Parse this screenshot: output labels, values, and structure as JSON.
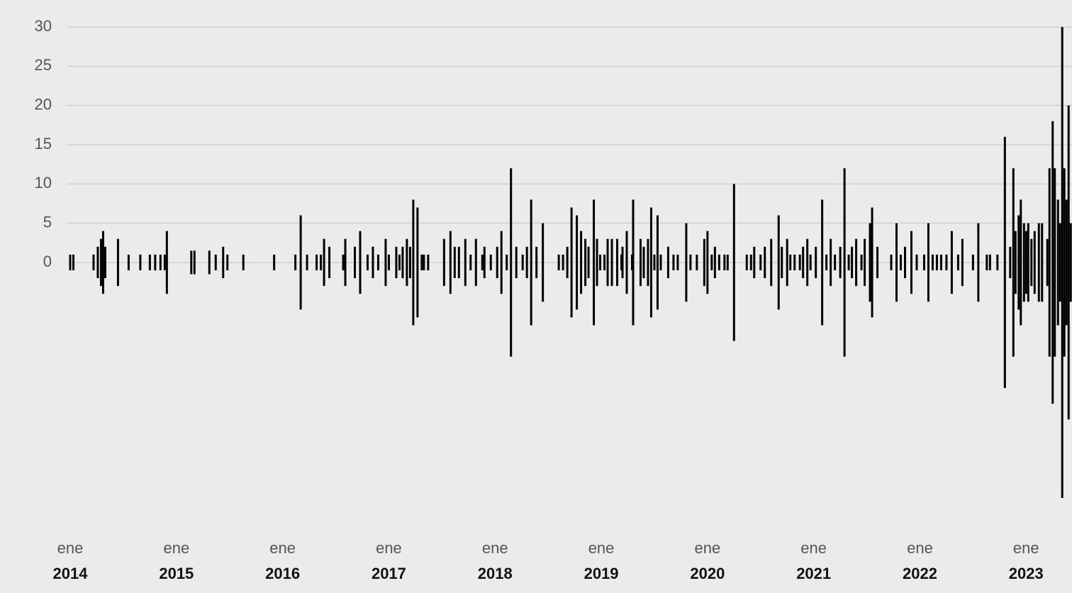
{
  "chart_data": {
    "type": "mirror-bar",
    "color": "#000000",
    "grid": true,
    "xlim": [
      2013.606,
      2023.432
    ],
    "ylim": [
      -30,
      30
    ],
    "yticks": [
      0,
      5,
      10,
      15,
      20,
      25,
      30
    ],
    "xticks": [
      {
        "value": 2014,
        "label": "ene",
        "sublabel": "2014"
      },
      {
        "value": 2015,
        "label": "ene",
        "sublabel": "2015"
      },
      {
        "value": 2016,
        "label": "ene",
        "sublabel": "2016"
      },
      {
        "value": 2017,
        "label": "ene",
        "sublabel": "2017"
      },
      {
        "value": 2018,
        "label": "ene",
        "sublabel": "2018"
      },
      {
        "value": 2019,
        "label": "ene",
        "sublabel": "2019"
      },
      {
        "value": 2020,
        "label": "ene",
        "sublabel": "2020"
      },
      {
        "value": 2021,
        "label": "ene",
        "sublabel": "2021"
      },
      {
        "value": 2022,
        "label": "ene",
        "sublabel": "2022"
      },
      {
        "value": 2023,
        "label": "ene",
        "sublabel": "2023"
      }
    ],
    "x": [
      2014.0,
      2014.03,
      2014.22,
      2014.26,
      2014.29,
      2014.31,
      2014.33,
      2014.45,
      2014.55,
      2014.66,
      2014.75,
      2014.8,
      2014.85,
      2014.89,
      2014.91,
      2015.14,
      2015.17,
      2015.31,
      2015.37,
      2015.44,
      2015.48,
      2015.63,
      2015.92,
      2016.12,
      2016.17,
      2016.23,
      2016.32,
      2016.36,
      2016.39,
      2016.44,
      2016.57,
      2016.59,
      2016.68,
      2016.73,
      2016.8,
      2016.85,
      2016.9,
      2016.97,
      2017.0,
      2017.07,
      2017.1,
      2017.13,
      2017.17,
      2017.2,
      2017.23,
      2017.27,
      2017.31,
      2017.33,
      2017.37,
      2017.52,
      2017.58,
      2017.62,
      2017.66,
      2017.72,
      2017.77,
      2017.82,
      2017.88,
      2017.9,
      2017.96,
      2018.02,
      2018.06,
      2018.11,
      2018.15,
      2018.2,
      2018.26,
      2018.3,
      2018.34,
      2018.39,
      2018.45,
      2018.6,
      2018.64,
      2018.68,
      2018.72,
      2018.77,
      2018.81,
      2018.85,
      2018.88,
      2018.93,
      2018.96,
      2018.99,
      2019.03,
      2019.06,
      2019.1,
      2019.15,
      2019.19,
      2019.2,
      2019.24,
      2019.29,
      2019.3,
      2019.37,
      2019.4,
      2019.44,
      2019.47,
      2019.5,
      2019.53,
      2019.56,
      2019.63,
      2019.68,
      2019.72,
      2019.8,
      2019.84,
      2019.9,
      2019.97,
      2020.0,
      2020.04,
      2020.07,
      2020.11,
      2020.16,
      2020.19,
      2020.25,
      2020.37,
      2020.41,
      2020.44,
      2020.5,
      2020.54,
      2020.6,
      2020.67,
      2020.7,
      2020.75,
      2020.78,
      2020.82,
      2020.87,
      2020.9,
      2020.94,
      2020.97,
      2021.02,
      2021.08,
      2021.12,
      2021.16,
      2021.2,
      2021.25,
      2021.29,
      2021.33,
      2021.36,
      2021.4,
      2021.45,
      2021.48,
      2021.53,
      2021.55,
      2021.6,
      2021.73,
      2021.78,
      2021.82,
      2021.86,
      2021.92,
      2021.97,
      2022.04,
      2022.08,
      2022.12,
      2022.16,
      2022.2,
      2022.25,
      2022.3,
      2022.36,
      2022.4,
      2022.5,
      2022.55,
      2022.63,
      2022.66,
      2022.73,
      2022.8,
      2022.85,
      2022.88,
      2022.9,
      2022.93,
      2022.95,
      2022.98,
      2023.0,
      2023.02,
      2023.05,
      2023.08,
      2023.12,
      2023.15,
      2023.2,
      2023.22,
      2023.25,
      2023.27,
      2023.3,
      2023.32,
      2023.34,
      2023.36,
      2023.38,
      2023.4,
      2023.42
    ],
    "values": [
      1,
      1,
      1,
      2,
      3,
      4,
      2,
      3,
      1,
      1,
      1,
      1,
      1,
      1,
      4,
      1.5,
      1.5,
      1.5,
      1,
      2,
      1,
      1,
      1,
      1,
      6,
      1,
      1,
      1,
      3,
      2,
      1,
      3,
      2,
      4,
      1,
      2,
      1,
      3,
      1,
      2,
      1,
      2,
      3,
      2,
      8,
      7,
      1,
      1,
      1,
      3,
      4,
      2,
      2,
      3,
      1,
      3,
      1,
      2,
      1,
      2,
      4,
      1,
      12,
      2,
      1,
      2,
      8,
      2,
      5,
      1,
      1,
      2,
      7,
      6,
      4,
      3,
      2,
      8,
      3,
      1,
      1,
      3,
      3,
      3,
      1,
      2,
      4,
      1,
      8,
      3,
      2,
      3,
      7,
      1,
      6,
      1,
      2,
      1,
      1,
      5,
      1,
      1,
      3,
      4,
      1,
      2,
      1,
      1,
      1,
      10,
      1,
      1,
      2,
      1,
      2,
      3,
      6,
      2,
      3,
      1,
      1,
      1,
      2,
      3,
      1,
      2,
      8,
      1,
      3,
      1,
      2,
      12,
      1,
      2,
      3,
      1,
      3,
      5,
      7,
      2,
      1,
      5,
      1,
      2,
      4,
      1,
      1,
      5,
      1,
      1,
      1,
      1,
      4,
      1,
      3,
      1,
      5,
      1,
      1,
      1,
      16,
      2,
      12,
      4,
      6,
      8,
      5,
      4,
      5,
      3,
      4,
      5,
      5,
      3,
      12,
      18,
      12,
      8,
      5,
      30,
      12,
      8,
      20,
      5
    ]
  }
}
